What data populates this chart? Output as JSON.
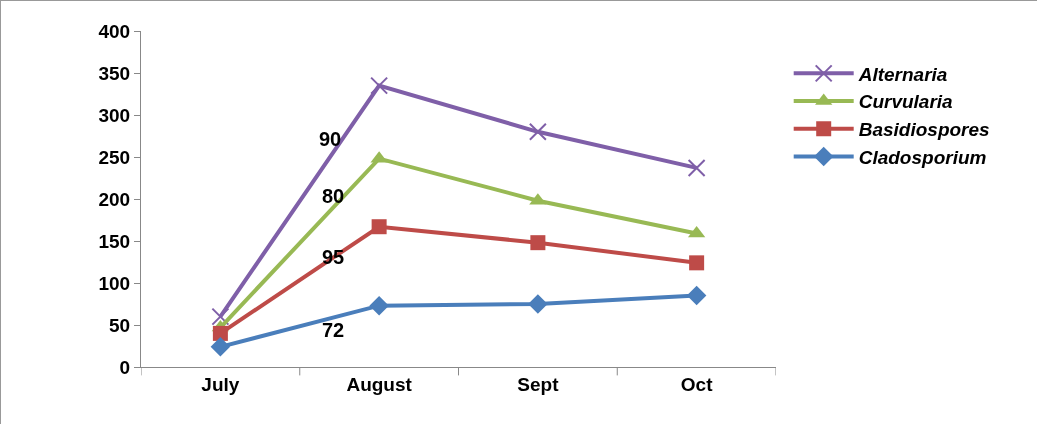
{
  "chart_data": {
    "type": "line",
    "categories": [
      "July",
      "August",
      "Sept",
      "Oct"
    ],
    "series": [
      {
        "name": "Alternaria",
        "color": "#7f5fa8",
        "marker": "cross",
        "values": [
          60,
          335,
          280,
          237
        ]
      },
      {
        "name": "Curvularia",
        "color": "#98b954",
        "marker": "triangle",
        "values": [
          47,
          248,
          198,
          159
        ]
      },
      {
        "name": "Basidiospores",
        "color": "#be4b48",
        "marker": "square",
        "values": [
          40,
          167,
          148,
          124
        ]
      },
      {
        "name": "Cladosporium",
        "color": "#4a7ebb",
        "marker": "diamond",
        "values": [
          24,
          73,
          75,
          85
        ]
      }
    ],
    "ylim": [
      0,
      400
    ],
    "yticks": [
      0,
      50,
      100,
      150,
      200,
      250,
      300,
      350,
      400
    ],
    "grid": false,
    "legend": "right",
    "line_style": "solid",
    "annotations": [
      "90",
      "80",
      "95",
      "72"
    ]
  }
}
